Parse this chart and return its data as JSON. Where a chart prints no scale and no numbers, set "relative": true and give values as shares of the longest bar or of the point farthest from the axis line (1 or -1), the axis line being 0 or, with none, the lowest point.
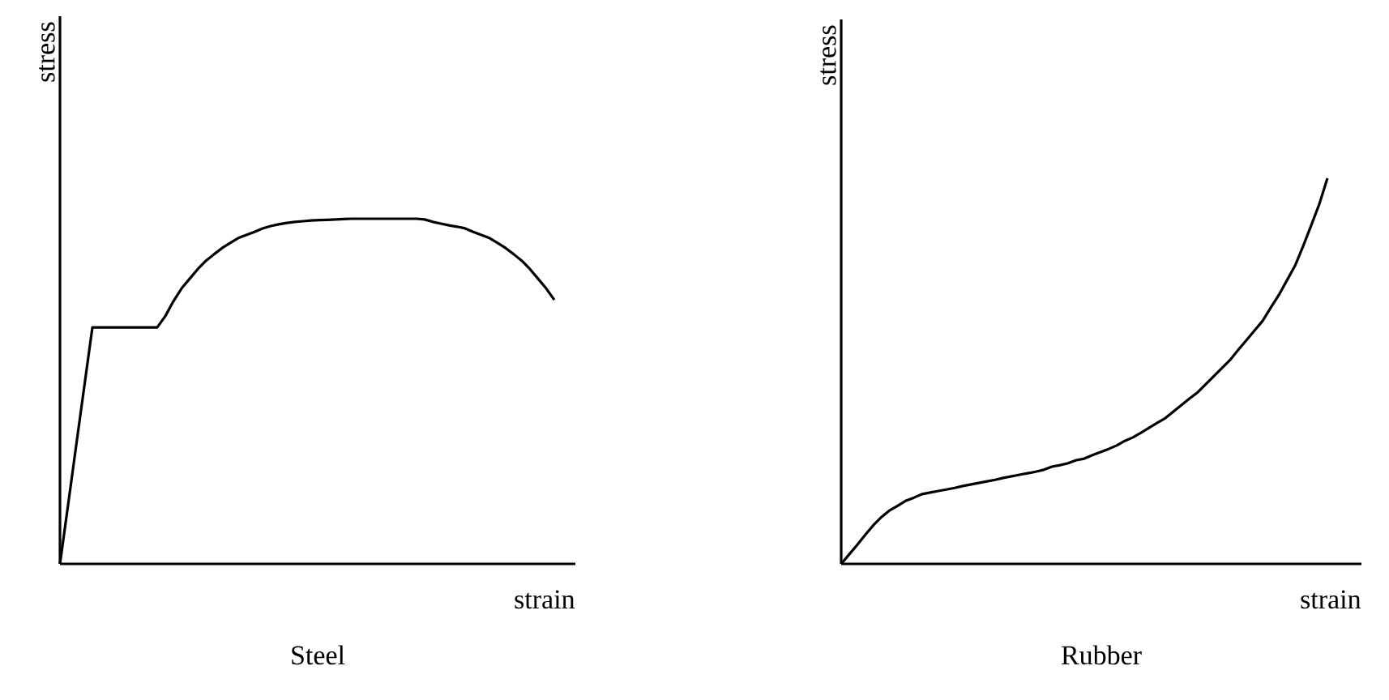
{
  "chart_data": [
    {
      "type": "line",
      "title": "Steel",
      "xlabel": "strain",
      "ylabel": "stress",
      "relative": true,
      "categories": [
        null,
        null,
        null,
        null,
        null,
        null,
        null,
        null,
        null,
        null,
        null,
        null,
        null,
        null,
        null,
        null,
        null,
        null,
        null,
        null,
        null,
        null,
        null,
        null,
        null,
        null,
        null,
        null,
        null,
        null,
        null,
        null,
        null,
        null,
        null,
        null,
        null,
        null,
        null,
        null,
        null,
        null,
        null,
        null,
        null,
        null,
        null,
        null,
        null,
        null,
        null,
        null,
        null,
        null,
        null,
        null,
        null,
        null,
        null,
        null,
        null,
        null,
        null,
        null
      ],
      "series": [
        {
          "color": "#000000",
          "values": [
            0,
            0.171,
            0.343,
            0.514,
            0.685,
            0.685,
            0.685,
            0.685,
            0.685,
            0.685,
            0.685,
            0.685,
            0.685,
            0.718,
            0.761,
            0.798,
            0.826,
            0.854,
            0.878,
            0.897,
            0.915,
            0.93,
            0.944,
            0.953,
            0.962,
            0.972,
            0.979,
            0.984,
            0.988,
            0.991,
            0.993,
            0.995,
            0.996,
            0.997,
            0.998,
            0.999,
            1.0,
            1.0,
            1.0,
            1.0,
            1.0,
            1.0,
            1.0,
            1.0,
            1.0,
            0.998,
            0.991,
            0.986,
            0.981,
            0.977,
            0.972,
            0.962,
            0.953,
            0.944,
            0.93,
            0.915,
            0.897,
            0.878,
            0.854,
            0.826,
            0.798,
            0.765,
            null,
            null
          ]
        }
      ]
    },
    {
      "type": "line",
      "title": "Rubber",
      "xlabel": "strain",
      "ylabel": "stress",
      "relative": true,
      "categories": [
        null,
        null,
        null,
        null,
        null,
        null,
        null,
        null,
        null,
        null,
        null,
        null,
        null,
        null,
        null,
        null,
        null,
        null,
        null,
        null,
        null,
        null,
        null,
        null,
        null,
        null,
        null,
        null,
        null,
        null,
        null,
        null,
        null,
        null,
        null,
        null,
        null,
        null,
        null,
        null,
        null,
        null,
        null,
        null,
        null,
        null,
        null,
        null,
        null,
        null,
        null,
        null,
        null,
        null,
        null,
        null,
        null,
        null,
        null,
        null,
        null,
        null,
        null,
        null
      ],
      "series": [
        {
          "color": "#000000",
          "values": [
            0,
            0.025,
            0.05,
            0.076,
            0.101,
            0.122,
            0.139,
            0.151,
            0.164,
            0.172,
            0.181,
            0.185,
            0.189,
            0.193,
            0.197,
            0.202,
            0.206,
            0.21,
            0.214,
            0.218,
            0.223,
            0.227,
            0.231,
            0.235,
            0.239,
            0.244,
            0.252,
            0.256,
            0.261,
            0.269,
            0.273,
            0.282,
            0.29,
            0.298,
            0.307,
            0.319,
            0.328,
            0.34,
            0.353,
            0.366,
            0.378,
            0.395,
            0.412,
            0.429,
            0.445,
            0.466,
            0.487,
            0.508,
            0.529,
            0.555,
            0.58,
            0.605,
            0.63,
            0.664,
            0.697,
            0.735,
            0.773,
            0.824,
            0.878,
            0.933,
            1.0,
            null,
            null,
            null
          ]
        }
      ]
    }
  ]
}
